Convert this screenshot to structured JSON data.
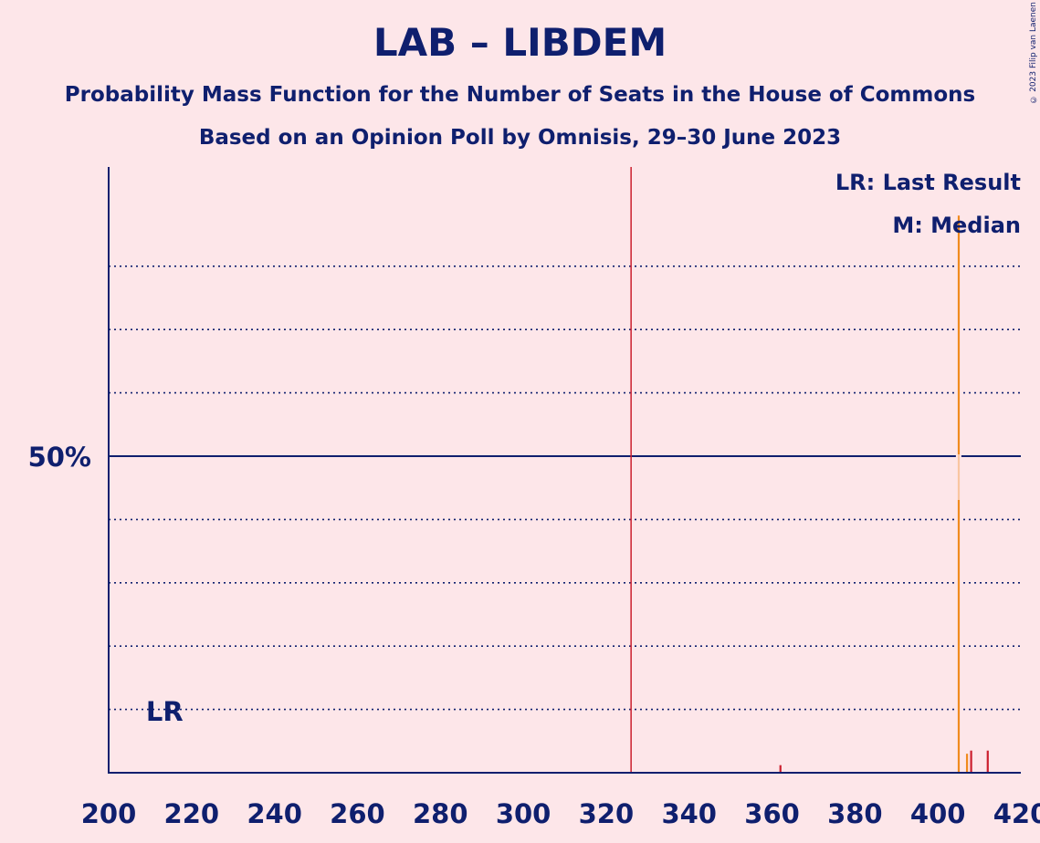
{
  "title": "LAB – LIBDEM",
  "subtitle1": "Probability Mass Function for the Number of Seats in the House of Commons",
  "subtitle2": "Based on an Opinion Poll by Omnisis, 29–30 June 2023",
  "copyright": "© 2023 Filip van Laenen",
  "legend": {
    "last_result": "LR: Last Result",
    "median": "M: Median"
  },
  "colors": {
    "background": "#fde6e9",
    "axis": "#0f1f6e",
    "majority_line": "#cc1f2e",
    "bar_lab": "#f08a1e",
    "bar_red": "#cc1f2e"
  },
  "chart_data": {
    "type": "bar",
    "xlabel": "",
    "ylabel": "",
    "xlim": [
      200,
      420
    ],
    "ylim": [
      0,
      96
    ],
    "x_ticks": [
      "200",
      "220",
      "240",
      "260",
      "280",
      "300",
      "320",
      "340",
      "360",
      "380",
      "400",
      "420"
    ],
    "y_tick_label": "50%",
    "y_tick_value": 50,
    "y_gridlines_dotted": [
      10,
      20,
      30,
      40,
      60,
      70,
      80
    ],
    "majority_seat": 326,
    "last_result_seat": 209,
    "last_result_label": "LR",
    "median_seat": 405,
    "bars": [
      {
        "seat": 362,
        "value": 1.2,
        "color": "red"
      },
      {
        "seat": 405,
        "value": 88,
        "color": "orange"
      },
      {
        "seat": 407,
        "value": 3.0,
        "color": "orange"
      },
      {
        "seat": 408,
        "value": 3.5,
        "color": "red"
      },
      {
        "seat": 412,
        "value": 3.5,
        "color": "red"
      }
    ]
  }
}
